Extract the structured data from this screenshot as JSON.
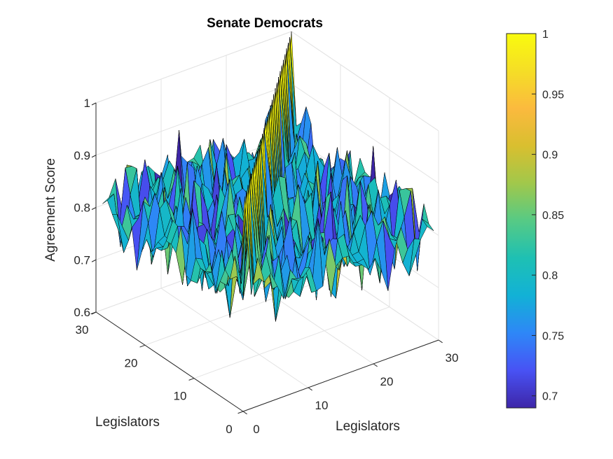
{
  "chart_data": {
    "type": "surface",
    "title": "Senate Democrats",
    "xlabel": "Legislators",
    "ylabel": "Legislators",
    "zlabel": "Agreement Score",
    "xlim": [
      0,
      30
    ],
    "ylim": [
      0,
      30
    ],
    "zlim": [
      0.6,
      1
    ],
    "xticks": [
      "0",
      "10",
      "20",
      "30"
    ],
    "yticks": [
      "0",
      "10",
      "20",
      "30"
    ],
    "zticks": [
      "0.6",
      "0.7",
      "0.8",
      "0.9",
      "1"
    ],
    "grid": true,
    "colormap": "parula",
    "colorbar": {
      "limits": [
        0.69,
        1
      ],
      "ticks": [
        "0.7",
        "0.75",
        "0.8",
        "0.85",
        "0.9",
        "0.95",
        "1"
      ],
      "tick_values": [
        0.7,
        0.75,
        0.8,
        0.85,
        0.9,
        0.95,
        1
      ],
      "placement": "right"
    },
    "matrix_size": 30,
    "diagonal_value": 1,
    "off_diagonal_mean": 0.8,
    "off_diagonal_range": [
      0.69,
      0.9
    ]
  }
}
